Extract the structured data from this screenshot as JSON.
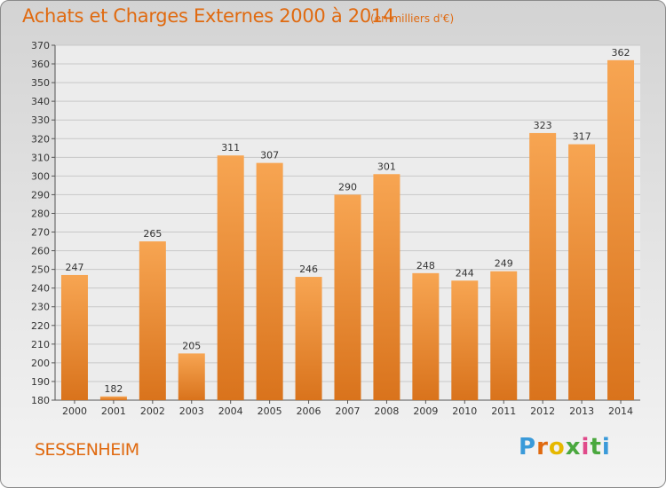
{
  "title": "Achats et Charges Externes 2000 à 2014",
  "subtitle": "(en milliers d'€)",
  "commune": "SESSENHEIM",
  "logo": {
    "letters": [
      "P",
      "r",
      "o",
      "x",
      "i",
      "t",
      "i"
    ],
    "colors": [
      "#3a9ad9",
      "#e06a10",
      "#e6b800",
      "#4aa83e",
      "#e04a8a",
      "#4aa83e",
      "#3a9ad9"
    ]
  },
  "colors": {
    "bar_top": "#f7a552",
    "bar_bottom": "#d9731c",
    "axis_text": "#333333",
    "grid": "#c8c8c8"
  },
  "chart_data": {
    "type": "bar",
    "title": "Achats et Charges Externes 2000 à 2014",
    "subtitle": "(en milliers d'€)",
    "xlabel": "",
    "ylabel": "",
    "categories": [
      "2000",
      "2001",
      "2002",
      "2003",
      "2004",
      "2005",
      "2006",
      "2007",
      "2008",
      "2009",
      "2010",
      "2011",
      "2012",
      "2013",
      "2014"
    ],
    "values": [
      247,
      182,
      265,
      205,
      311,
      307,
      246,
      290,
      301,
      248,
      244,
      249,
      323,
      317,
      362
    ],
    "ylim": [
      180,
      370
    ],
    "yticks": [
      180,
      190,
      200,
      210,
      220,
      230,
      240,
      250,
      260,
      270,
      280,
      290,
      300,
      310,
      320,
      330,
      340,
      350,
      360,
      370
    ],
    "grid": true,
    "legend": "none"
  }
}
